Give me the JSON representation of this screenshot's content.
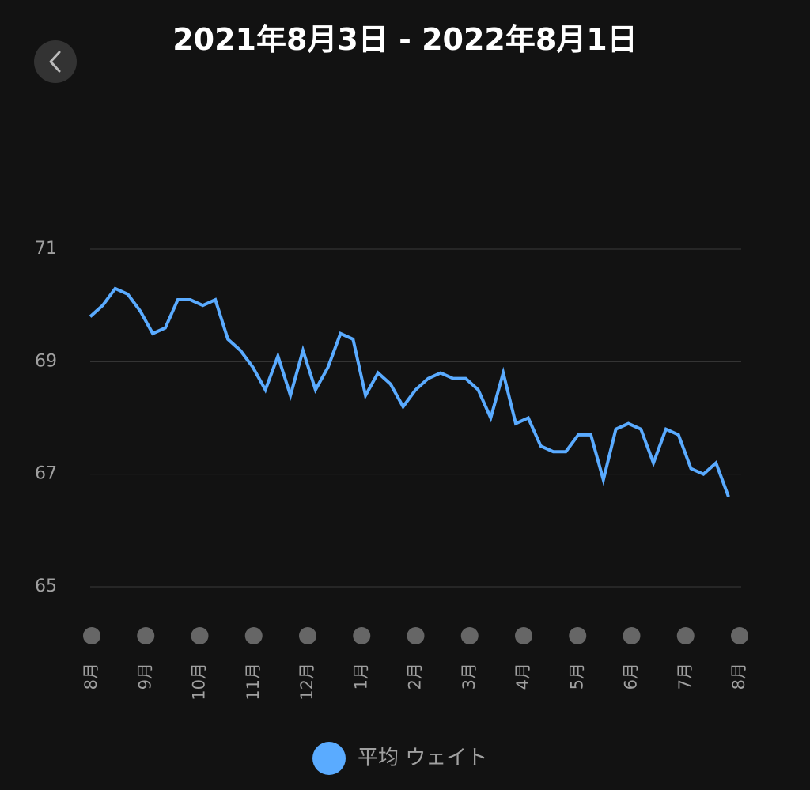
{
  "chart_data": {
    "type": "line",
    "title": "2021年8月3日 - 2022年8月1日",
    "month_labels": [
      "8月",
      "9月",
      "10月",
      "11月",
      "12月",
      "1月",
      "2月",
      "3月",
      "4月",
      "5月",
      "6月",
      "7月",
      "8月"
    ],
    "series": [
      {
        "name": "平均 ウェイト",
        "color": "#5aabff",
        "values": [
          69.8,
          70.0,
          70.3,
          70.2,
          69.9,
          69.5,
          69.6,
          70.1,
          70.1,
          70.0,
          70.1,
          69.4,
          69.2,
          68.9,
          68.5,
          69.1,
          68.4,
          69.2,
          68.5,
          68.9,
          69.5,
          69.4,
          68.4,
          68.8,
          68.6,
          68.2,
          68.5,
          68.7,
          68.8,
          68.7,
          68.7,
          68.5,
          68.0,
          68.8,
          67.9,
          68.0,
          67.5,
          67.4,
          67.4,
          67.7,
          67.7,
          66.9,
          67.8,
          67.9,
          67.8,
          67.2,
          67.8,
          67.7,
          67.1,
          67.0,
          67.2,
          66.6
        ]
      }
    ],
    "ylim": [
      65,
      71
    ],
    "yticks": [
      65,
      67,
      69,
      71
    ],
    "grid": true
  }
}
